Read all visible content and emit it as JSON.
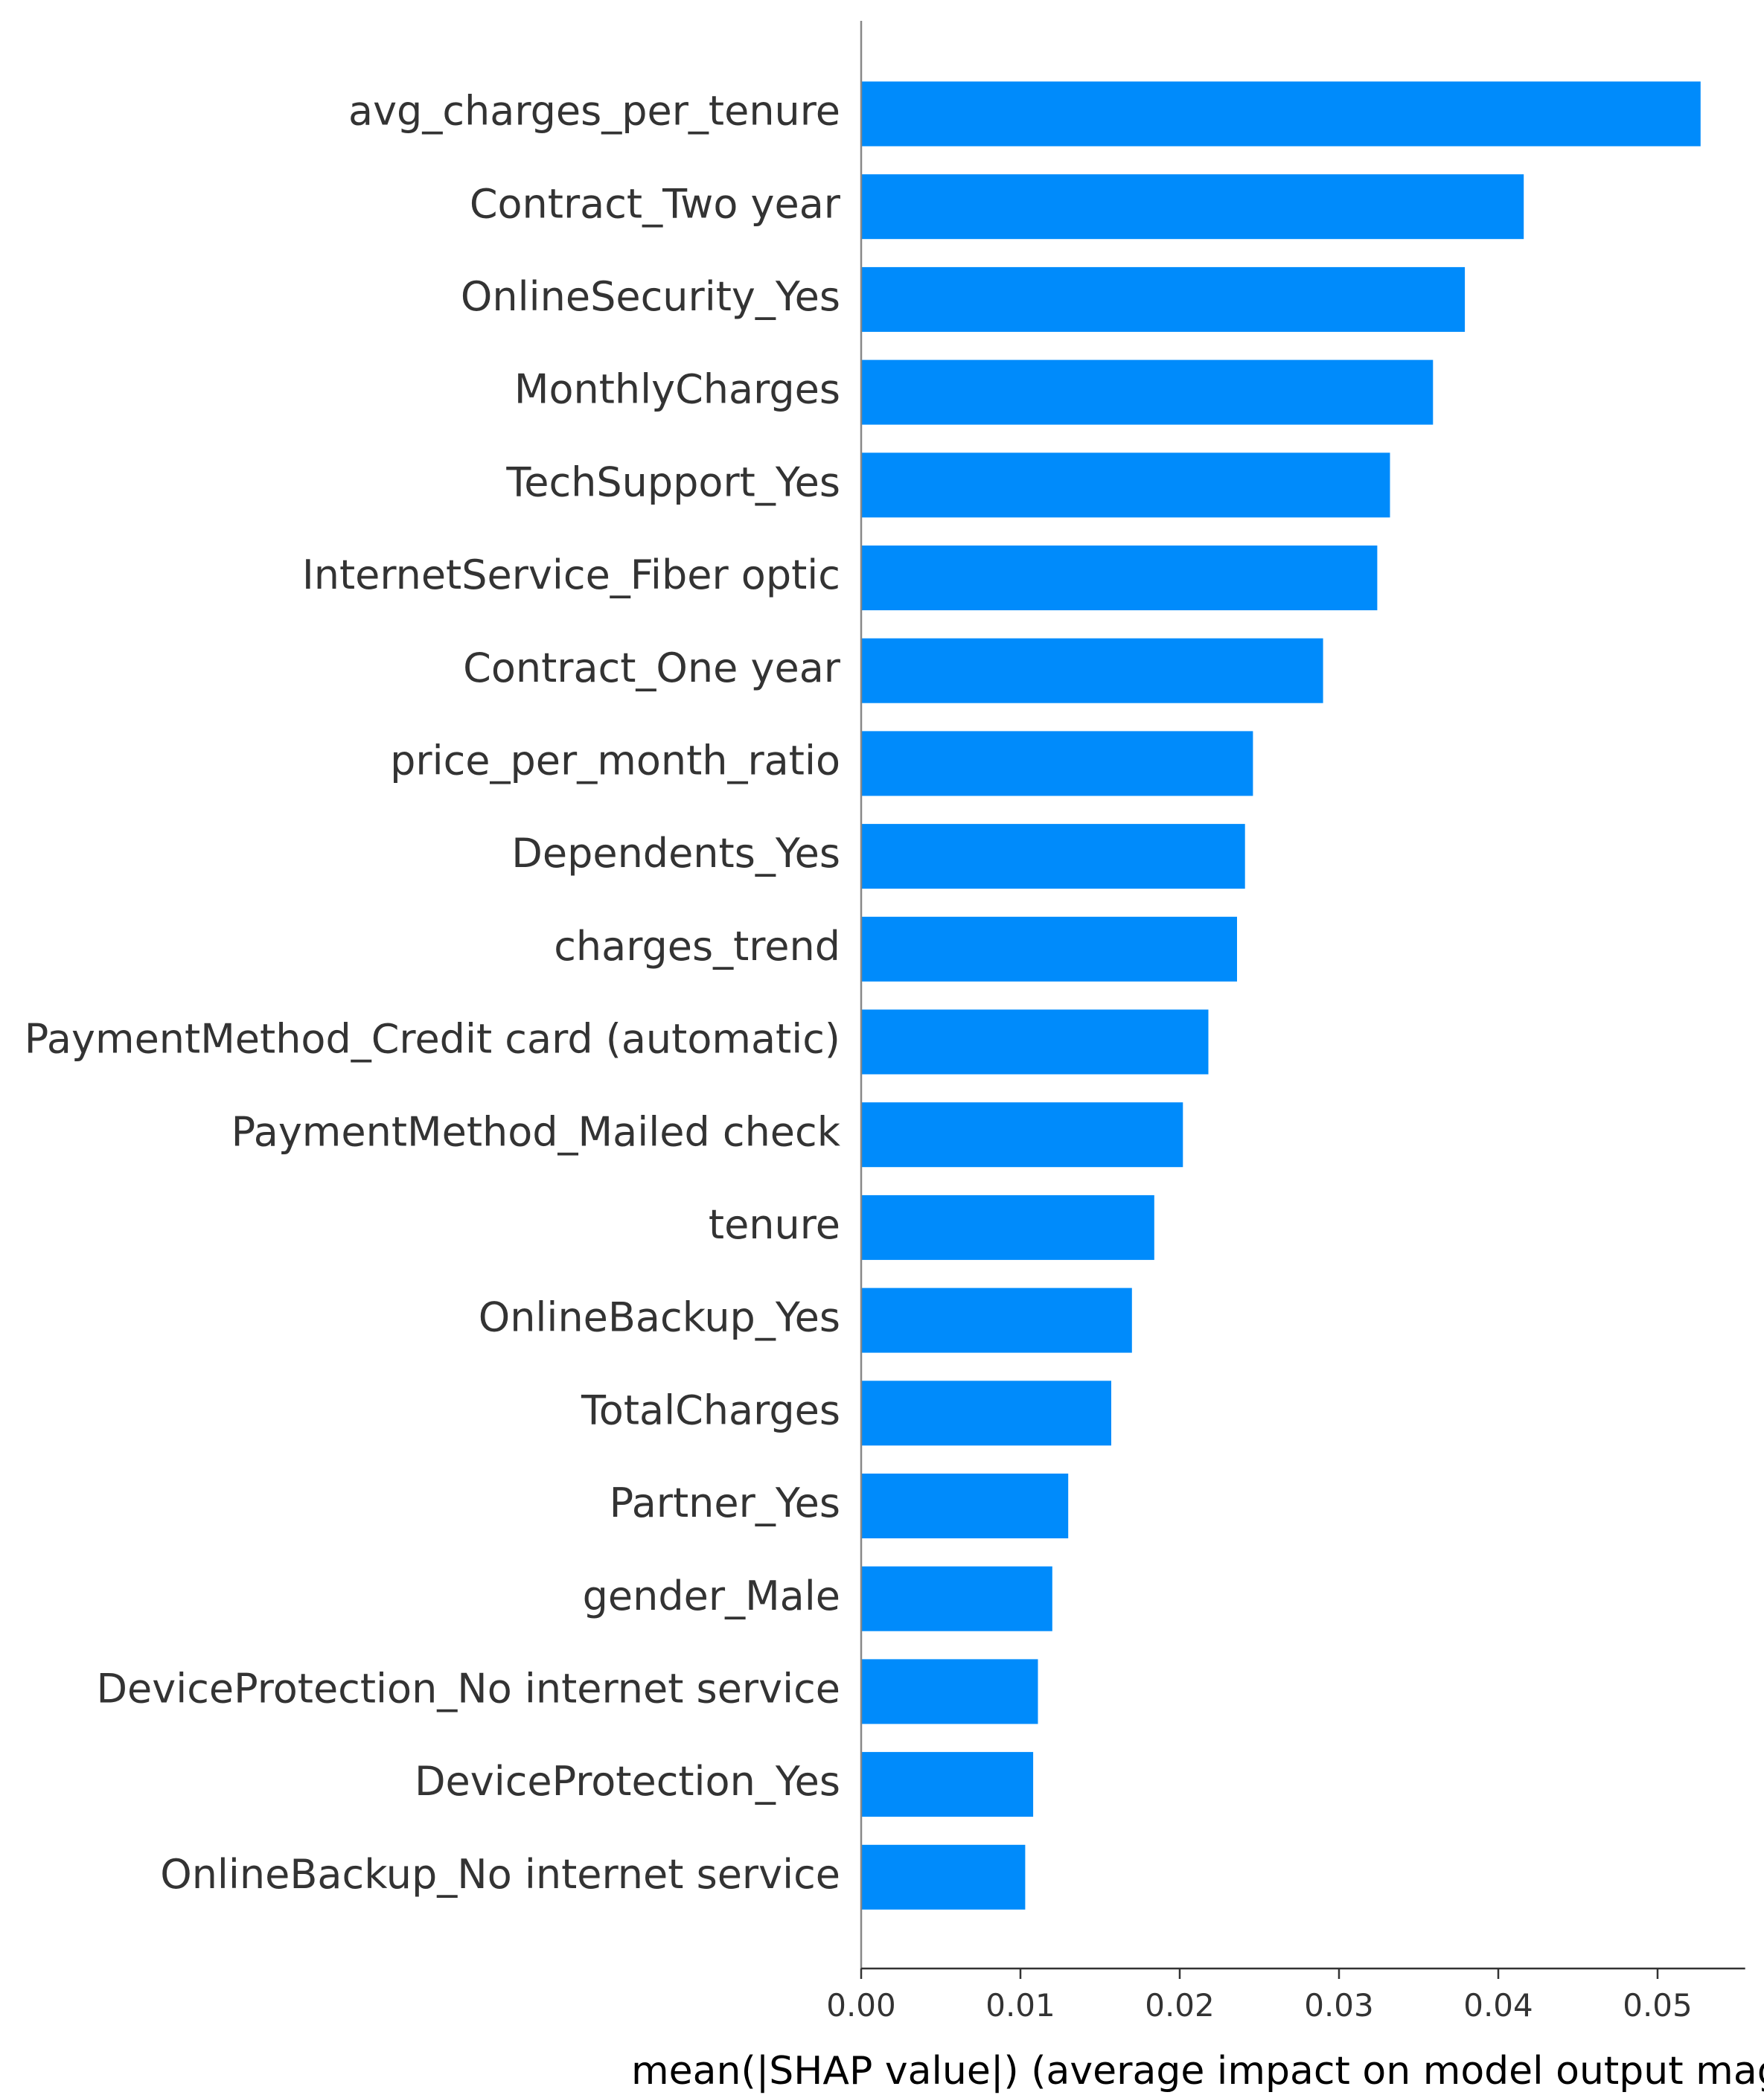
{
  "chart_data": {
    "type": "bar",
    "orientation": "horizontal",
    "categories": [
      "avg_charges_per_tenure",
      "Contract_Two year",
      "OnlineSecurity_Yes",
      "MonthlyCharges",
      "TechSupport_Yes",
      "InternetService_Fiber optic",
      "Contract_One year",
      "price_per_month_ratio",
      "Dependents_Yes",
      "charges_trend",
      "PaymentMethod_Credit card (automatic)",
      "PaymentMethod_Mailed check",
      "tenure",
      "OnlineBackup_Yes",
      "TotalCharges",
      "Partner_Yes",
      "gender_Male",
      "DeviceProtection_No internet service",
      "DeviceProtection_Yes",
      "OnlineBackup_No internet service"
    ],
    "values": [
      0.0527,
      0.0416,
      0.0379,
      0.0359,
      0.0332,
      0.0324,
      0.029,
      0.0246,
      0.0241,
      0.0236,
      0.0218,
      0.0202,
      0.0184,
      0.017,
      0.0157,
      0.013,
      0.012,
      0.0111,
      0.0108,
      0.0103
    ],
    "xlabel": "mean(|SHAP value|) (average impact on model output magnitude)",
    "ylabel": "",
    "xlim": [
      0,
      0.0555
    ],
    "xticks": [
      0.0,
      0.01,
      0.02,
      0.03,
      0.04,
      0.05
    ],
    "xtick_labels": [
      "0.00",
      "0.01",
      "0.02",
      "0.03",
      "0.04",
      "0.05"
    ],
    "grid": false,
    "bar_color": "#008bfb",
    "axis_color": "#333333"
  }
}
